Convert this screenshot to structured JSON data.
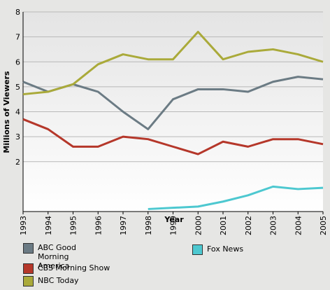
{
  "chart_data": {
    "type": "line",
    "x_label": "Year",
    "y_label": "Millions of Viewers",
    "categories": [
      "1993",
      "1994",
      "1995",
      "1996",
      "1997",
      "1998",
      "1999",
      "2000",
      "2001",
      "2002",
      "2003",
      "2004",
      "2005"
    ],
    "series": [
      {
        "name": "ABC Good Morning America",
        "color": "#6b7b84",
        "values": [
          5.2,
          4.8,
          5.1,
          4.8,
          4.0,
          3.3,
          4.5,
          4.9,
          4.9,
          4.8,
          5.2,
          5.4,
          5.3
        ]
      },
      {
        "name": "CBS Morning Show",
        "color": "#b5372a",
        "values": [
          3.7,
          3.3,
          2.6,
          2.6,
          3.0,
          2.9,
          2.6,
          2.3,
          2.8,
          2.6,
          2.9,
          2.9,
          2.7
        ]
      },
      {
        "name": "NBC Today",
        "color": "#aaaa3a",
        "values": [
          4.7,
          4.8,
          5.1,
          5.9,
          6.3,
          6.1,
          6.1,
          7.2,
          6.1,
          6.4,
          6.5,
          6.3,
          6.0
        ]
      },
      {
        "name": "Fox News",
        "color": "#4dc8d0",
        "values": [
          null,
          null,
          null,
          null,
          null,
          0.1,
          0.15,
          0.2,
          0.4,
          0.65,
          1.0,
          0.9,
          0.95
        ]
      }
    ],
    "ylim": [
      0,
      8
    ],
    "yticks": [
      2,
      3,
      4,
      5,
      6,
      7,
      8
    ],
    "grid": true
  }
}
